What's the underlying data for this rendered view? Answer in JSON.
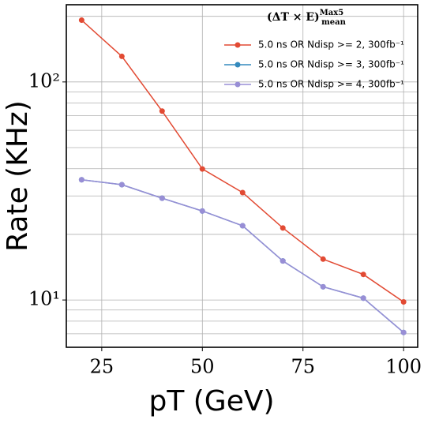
{
  "chart_data": {
    "type": "line",
    "xlabel": "pT (GeV)",
    "ylabel": "Rate (KHz)",
    "legend_title": "(ΔT × E)",
    "legend_title_sup": "Max5",
    "legend_title_sub": "mean",
    "x": [
      20,
      30,
      40,
      50,
      60,
      70,
      80,
      90,
      100
    ],
    "series": [
      {
        "name": "5.0 ns OR Ndisp >= 2, 300fb⁻¹",
        "color": "#e24a33",
        "values": [
          192,
          131,
          73.5,
          39.9,
          31.1,
          21.4,
          15.4,
          13.1,
          9.8
        ]
      },
      {
        "name": "5.0 ns OR Ndisp >= 3, 300fb⁻¹",
        "color": "#348abd",
        "values": [
          35.6,
          33.8,
          29.3,
          25.6,
          21.9,
          15.1,
          11.5,
          10.2,
          7.1
        ]
      },
      {
        "name": "5.0 ns OR Ndisp >= 4, 300fb⁻¹",
        "color": "#988ed5",
        "values": [
          35.6,
          33.8,
          29.3,
          25.6,
          21.9,
          15.1,
          11.5,
          10.2,
          7.1
        ]
      }
    ],
    "xlim": [
      16.2,
      103.5
    ],
    "xticks": [
      25,
      50,
      75,
      100
    ],
    "ylim": [
      6.07,
      226
    ],
    "ylog": true,
    "yticks": [
      {
        "value": 10,
        "label": "10¹"
      },
      {
        "value": 100,
        "label": "10²"
      }
    ],
    "yminorticks": [
      7,
      8,
      9,
      20,
      30,
      40,
      50,
      60,
      70,
      80,
      90,
      200
    ],
    "grid": true,
    "legend": "upper right"
  }
}
